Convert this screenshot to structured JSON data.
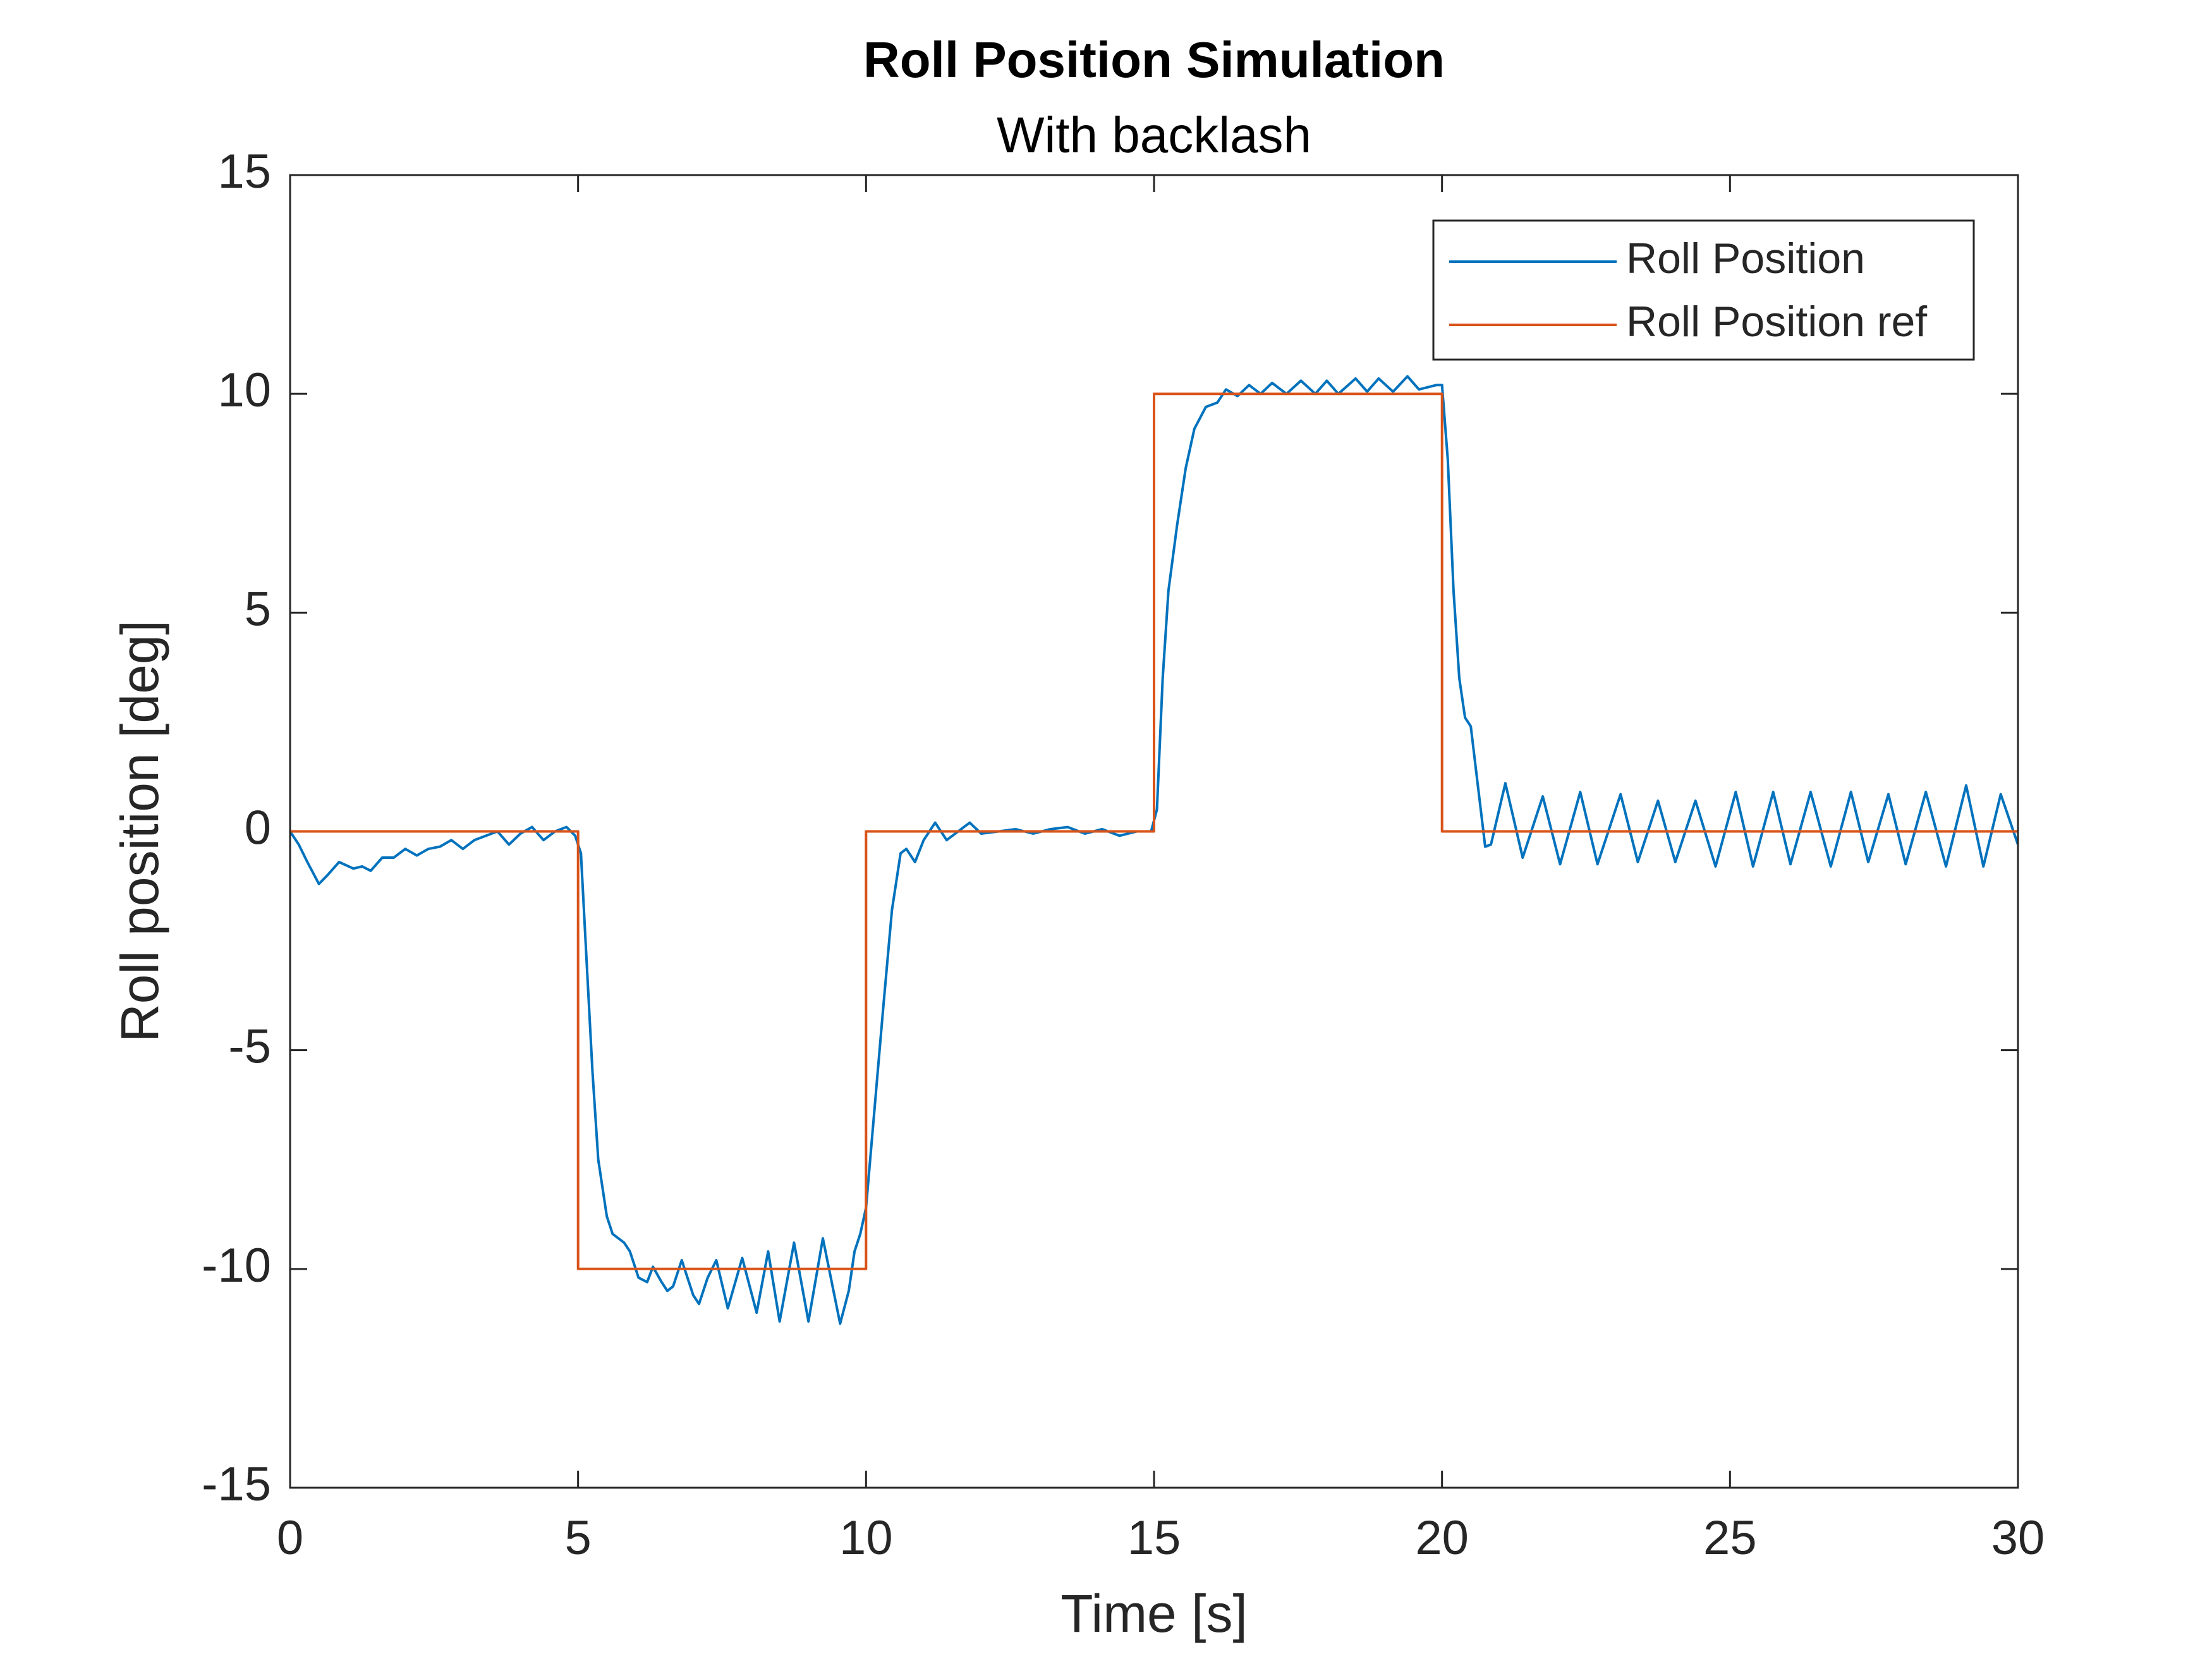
{
  "chart_data": {
    "type": "line",
    "title": "Roll Position Simulation",
    "subtitle": "With backlash",
    "x_label": "Time [s]",
    "y_label": "Roll position [deg]",
    "xlim": [
      0,
      30
    ],
    "ylim": [
      -15,
      15
    ],
    "xticks": [
      0,
      5,
      10,
      15,
      20,
      25,
      30
    ],
    "yticks": [
      -15,
      -10,
      -5,
      0,
      5,
      10,
      15
    ],
    "legend": "upper right",
    "series": [
      {
        "name": "Roll Position",
        "color": "#0072BD",
        "x": [
          0,
          0.15,
          0.3,
          0.5,
          0.65,
          0.85,
          1.1,
          1.25,
          1.4,
          1.6,
          1.8,
          2.0,
          2.2,
          2.4,
          2.6,
          2.8,
          3.0,
          3.2,
          3.4,
          3.6,
          3.8,
          4.0,
          4.2,
          4.4,
          4.6,
          4.8,
          4.95,
          5.05,
          5.15,
          5.25,
          5.35,
          5.5,
          5.6,
          5.8,
          5.9,
          6.05,
          6.2,
          6.3,
          6.45,
          6.55,
          6.65,
          6.8,
          7.0,
          7.1,
          7.25,
          7.4,
          7.6,
          7.85,
          8.1,
          8.3,
          8.5,
          8.75,
          9.0,
          9.25,
          9.55,
          9.7,
          9.8,
          9.9,
          10.0,
          10.15,
          10.3,
          10.45,
          10.6,
          10.7,
          10.85,
          11.0,
          11.2,
          11.4,
          11.6,
          11.8,
          12.0,
          12.3,
          12.6,
          12.9,
          13.2,
          13.5,
          13.8,
          14.1,
          14.4,
          14.7,
          14.95,
          15.05,
          15.15,
          15.25,
          15.4,
          15.55,
          15.7,
          15.9,
          16.1,
          16.25,
          16.45,
          16.65,
          16.85,
          17.05,
          17.3,
          17.55,
          17.8,
          18.0,
          18.2,
          18.5,
          18.7,
          18.9,
          19.15,
          19.4,
          19.6,
          19.9,
          20.0,
          20.1,
          20.2,
          20.3,
          20.4,
          20.5,
          20.6,
          20.75,
          20.85,
          21.1,
          21.4,
          21.75,
          22.05,
          22.4,
          22.7,
          23.1,
          23.4,
          23.75,
          24.05,
          24.4,
          24.75,
          25.1,
          25.4,
          25.75,
          26.05,
          26.4,
          26.75,
          27.1,
          27.4,
          27.75,
          28.05,
          28.4,
          28.75,
          29.1,
          29.4,
          29.7,
          30
        ],
        "values": [
          0,
          -0.3,
          -0.7,
          -1.2,
          -1.0,
          -0.7,
          -0.85,
          -0.8,
          -0.9,
          -0.6,
          -0.6,
          -0.4,
          -0.55,
          -0.4,
          -0.35,
          -0.2,
          -0.4,
          -0.2,
          -0.1,
          0,
          -0.3,
          -0.05,
          0.1,
          -0.2,
          0.0,
          0.1,
          -0.1,
          -0.5,
          -3,
          -5.5,
          -7.5,
          -8.8,
          -9.2,
          -9.4,
          -9.6,
          -10.2,
          -10.3,
          -9.95,
          -10.3,
          -10.5,
          -10.4,
          -9.8,
          -10.6,
          -10.8,
          -10.2,
          -9.8,
          -10.9,
          -9.75,
          -11.0,
          -9.6,
          -11.2,
          -9.4,
          -11.2,
          -9.3,
          -11.25,
          -10.5,
          -9.6,
          -9.2,
          -8.6,
          -6.3,
          -4.0,
          -1.8,
          -0.5,
          -0.4,
          -0.7,
          -0.2,
          0.2,
          -0.2,
          0.0,
          0.2,
          -0.05,
          0.0,
          0.05,
          -0.05,
          0.05,
          0.1,
          -0.05,
          0.05,
          -0.1,
          0.0,
          0.0,
          0.5,
          3.5,
          5.5,
          7.0,
          8.3,
          9.2,
          9.7,
          9.8,
          10.1,
          9.95,
          10.2,
          10.0,
          10.25,
          10.0,
          10.3,
          10.0,
          10.3,
          10.0,
          10.35,
          10.05,
          10.35,
          10.05,
          10.4,
          10.1,
          10.2,
          10.2,
          8.5,
          5.5,
          3.5,
          2.6,
          2.4,
          1.3,
          -0.35,
          -0.3,
          1.1,
          -0.6,
          0.8,
          -0.75,
          0.9,
          -0.75,
          0.85,
          -0.7,
          0.7,
          -0.7,
          0.7,
          -0.8,
          0.9,
          -0.8,
          0.9,
          -0.75,
          0.9,
          -0.8,
          0.9,
          -0.7,
          0.85,
          -0.75,
          0.9,
          -0.8,
          1.05,
          -0.8,
          0.85,
          -0.3
        ]
      },
      {
        "name": "Roll Position ref",
        "color": "#D95319",
        "x": [
          0,
          5,
          5,
          10,
          10,
          15,
          15,
          20,
          20,
          30
        ],
        "values": [
          0,
          0,
          -10,
          -10,
          0,
          0,
          10,
          10,
          0,
          0
        ]
      }
    ]
  }
}
